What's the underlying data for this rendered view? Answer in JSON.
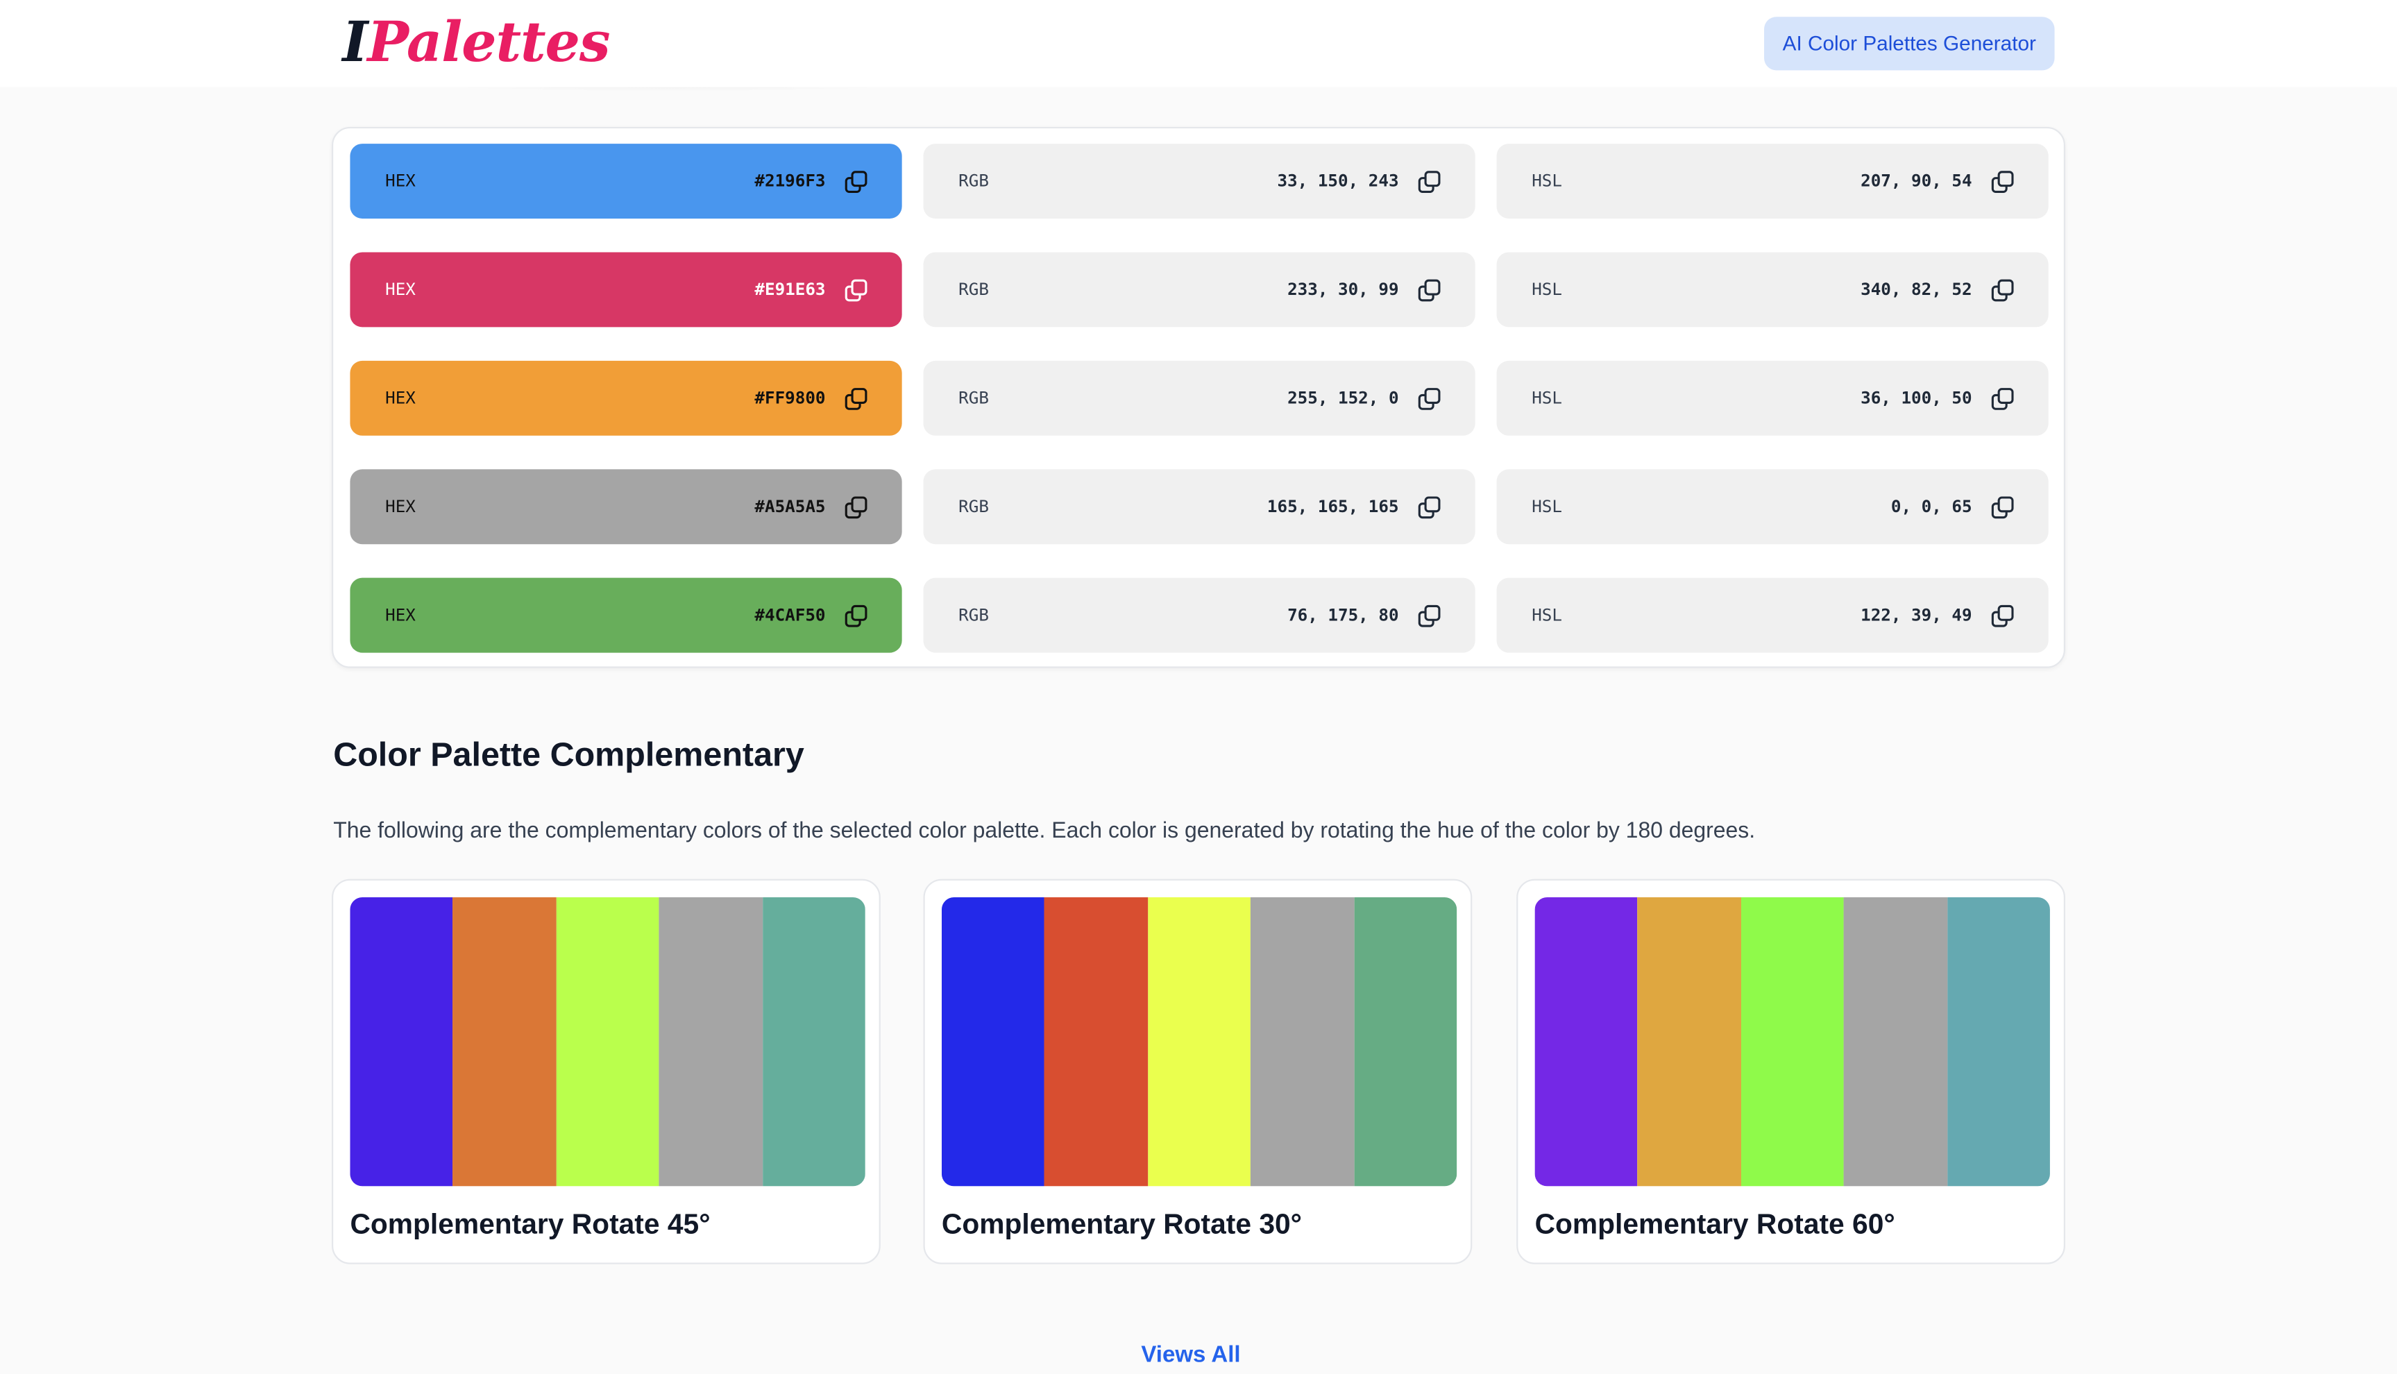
{
  "header": {
    "logo_part1": "I",
    "logo_part2": "Palettes",
    "cta_label": "AI Color Palettes Generator"
  },
  "colors": [
    {
      "hex_label": "HEX",
      "hex": "#2196F3",
      "rgb_label": "RGB",
      "rgb": "33, 150, 243",
      "hsl_label": "HSL",
      "hsl": "207, 90, 54",
      "swatch": "#4996EE",
      "text": "dark"
    },
    {
      "hex_label": "HEX",
      "hex": "#E91E63",
      "rgb_label": "RGB",
      "rgb": "233, 30, 99",
      "hsl_label": "HSL",
      "hsl": "340, 82, 52",
      "swatch": "#D73765",
      "text": "light"
    },
    {
      "hex_label": "HEX",
      "hex": "#FF9800",
      "rgb_label": "RGB",
      "rgb": "255, 152, 0",
      "hsl_label": "HSL",
      "hsl": "36, 100, 50",
      "swatch": "#F19E37",
      "text": "dark"
    },
    {
      "hex_label": "HEX",
      "hex": "#A5A5A5",
      "rgb_label": "RGB",
      "rgb": "165, 165, 165",
      "hsl_label": "HSL",
      "hsl": "0, 0, 65",
      "swatch": "#A5A5A5",
      "text": "dark"
    },
    {
      "hex_label": "HEX",
      "hex": "#4CAF50",
      "rgb_label": "RGB",
      "rgb": "76, 175, 80",
      "hsl_label": "HSL",
      "hsl": "122, 39, 49",
      "swatch": "#68AE5B",
      "text": "dark"
    }
  ],
  "complementary": {
    "title": "Color Palette Complementary",
    "description": "The following are the complementary colors of the selected color palette. Each color is generated by rotating the hue of the color by 180 degrees.",
    "palettes": [
      {
        "title": "Complementary Rotate 45°",
        "colors": [
          "#4722E7",
          "#DA7736",
          "#BAFF4C",
          "#A5A5A5",
          "#65AE9C"
        ]
      },
      {
        "title": "Complementary Rotate 30°",
        "colors": [
          "#2329E9",
          "#D84E30",
          "#EAFF4E",
          "#A5A5A5",
          "#66AC84"
        ]
      },
      {
        "title": "Complementary Rotate 60°",
        "colors": [
          "#7428E6",
          "#DFA740",
          "#8FFA4A",
          "#A5A5A5",
          "#65A9B1"
        ]
      }
    ],
    "views_all_label": "Views All"
  }
}
